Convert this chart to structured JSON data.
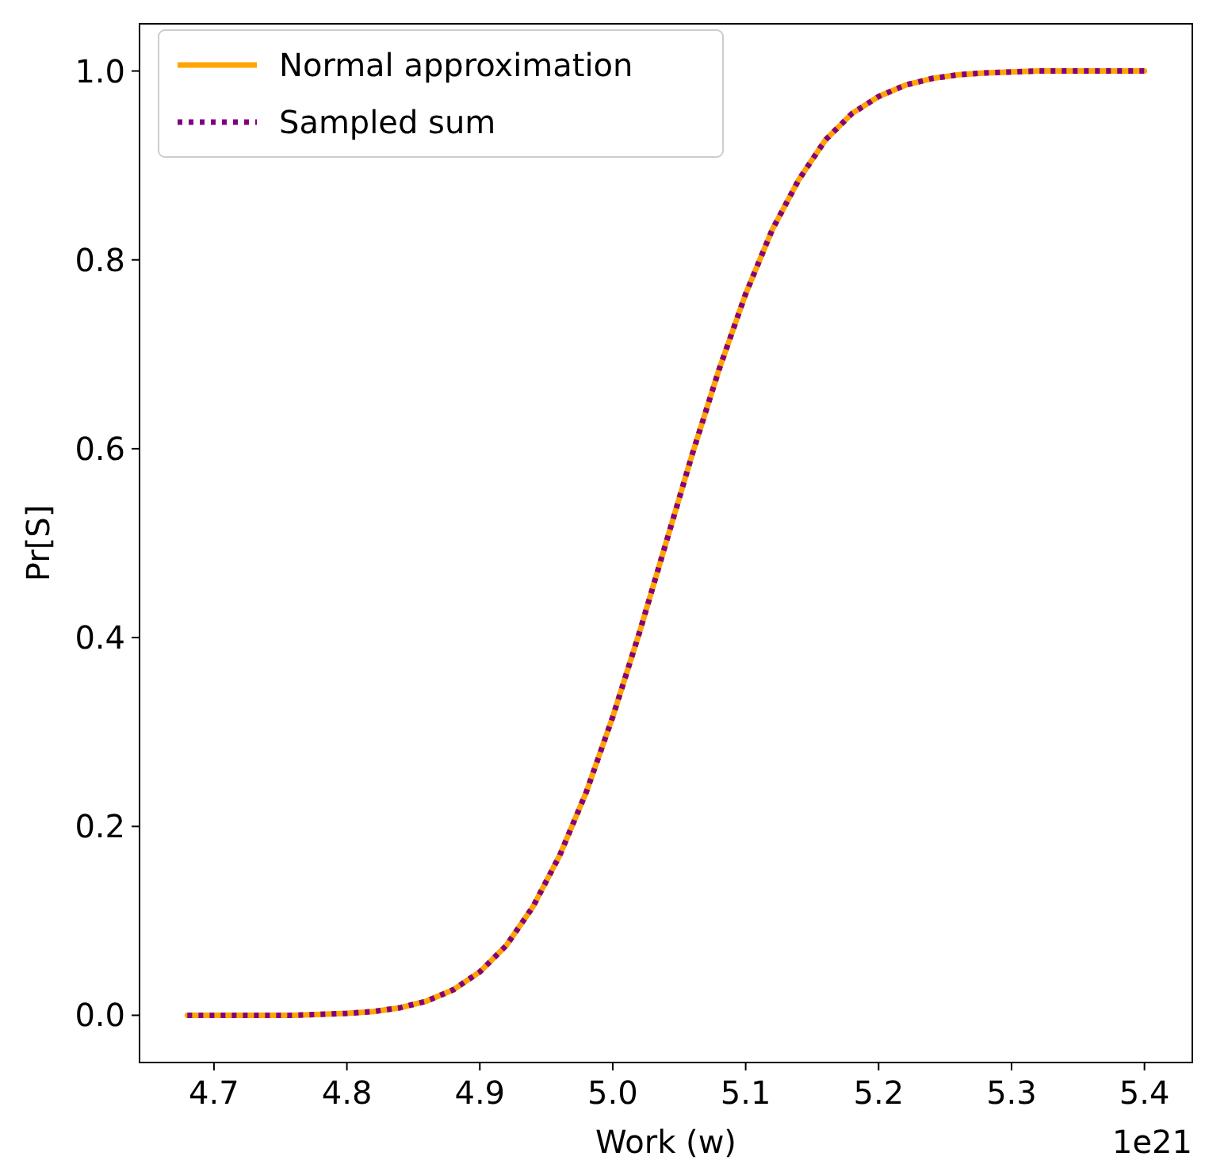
{
  "chart_data": {
    "type": "line",
    "xlabel": "Work (w)",
    "ylabel": "Pr[S]",
    "annotations": [
      "1e21"
    ],
    "x": [
      4.68,
      4.7,
      4.72,
      4.74,
      4.76,
      4.78,
      4.8,
      4.82,
      4.84,
      4.86,
      4.88,
      4.9,
      4.92,
      4.94,
      4.96,
      4.98,
      5.0,
      5.02,
      5.04,
      5.06,
      5.08,
      5.1,
      5.12,
      5.14,
      5.16,
      5.18,
      5.2,
      5.22,
      5.24,
      5.26,
      5.28,
      5.3,
      5.32,
      5.34,
      5.36,
      5.38,
      5.4
    ],
    "series": [
      {
        "name": "Normal approximation",
        "color": "#ffa500",
        "line_style": "solid",
        "values": [
          0,
          0,
          0,
          0,
          0,
          0.001,
          0.002,
          0.004,
          0.008,
          0.015,
          0.027,
          0.046,
          0.074,
          0.115,
          0.169,
          0.236,
          0.316,
          0.405,
          0.5,
          0.595,
          0.684,
          0.764,
          0.832,
          0.885,
          0.927,
          0.955,
          0.973,
          0.985,
          0.992,
          0.996,
          0.998,
          0.999,
          1,
          1,
          1,
          1,
          1
        ]
      },
      {
        "name": "Sampled sum",
        "color": "#800080",
        "line_style": "dotted",
        "values": [
          0,
          0,
          0,
          0,
          0,
          0.001,
          0.002,
          0.004,
          0.008,
          0.015,
          0.027,
          0.046,
          0.074,
          0.115,
          0.169,
          0.236,
          0.316,
          0.405,
          0.5,
          0.595,
          0.684,
          0.764,
          0.832,
          0.885,
          0.927,
          0.955,
          0.973,
          0.985,
          0.992,
          0.996,
          0.998,
          0.999,
          1,
          1,
          1,
          1,
          1
        ]
      }
    ],
    "xlim": [
      4.644,
      5.436
    ],
    "xticks": [
      4.7,
      4.8,
      4.9,
      {
        "value": 5,
        "label": "5.0"
      },
      5.1,
      5.2,
      5.3,
      5.4
    ],
    "ylim": [
      -0.05,
      1.05
    ],
    "yticks": [
      {
        "value": 0,
        "label": "0.0"
      },
      0.2,
      0.4,
      0.6,
      0.8,
      {
        "value": 1,
        "label": "1.0"
      }
    ],
    "grid": false,
    "legend": "top left",
    "marker": "none"
  }
}
